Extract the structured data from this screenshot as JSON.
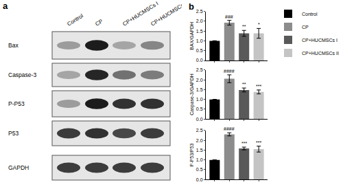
{
  "chart_data": [
    {
      "type": "bar",
      "y_label": "BAX/GAPDH",
      "categories": [
        "Control",
        "CP",
        "CP+HUCMSCs I",
        "CP+HUCMSCs II"
      ],
      "values": [
        1.0,
        1.92,
        1.38,
        1.38
      ],
      "errors": [
        0,
        0.12,
        0.15,
        0.25
      ],
      "annotations": [
        null,
        "###",
        "**",
        "*"
      ],
      "colors": [
        "#000000",
        "#8c8c8c",
        "#595959",
        "#c4c4c4"
      ],
      "ylim": [
        0,
        2.5
      ],
      "yticks": [
        {
          "value": 0,
          "label": "0.0"
        },
        {
          "value": 0.5,
          "label": "0.5"
        },
        {
          "value": 1,
          "label": "1.0"
        },
        {
          "value": 1.5,
          "label": "1.5"
        },
        {
          "value": 2,
          "label": "2.0"
        },
        {
          "value": 2.5,
          "label": "2.5"
        }
      ],
      "tick_labels": "y",
      "legend": "top right"
    },
    {
      "type": "bar",
      "y_label": "Caspase-3/GAPDH",
      "categories": [
        "Control",
        "CP",
        "CP+HUCMSCs I",
        "CP+HUCMSCs II"
      ],
      "values": [
        1.0,
        2.05,
        1.48,
        1.38
      ],
      "errors": [
        0,
        0.2,
        0.1,
        0.1
      ],
      "annotations": [
        null,
        "####",
        "**",
        "***"
      ],
      "colors": [
        "#000000",
        "#8c8c8c",
        "#595959",
        "#c4c4c4"
      ],
      "ylim": [
        0,
        2.5
      ],
      "yticks": [
        {
          "value": 0,
          "label": "0.0"
        },
        {
          "value": 0.5,
          "label": "0.5"
        },
        {
          "value": 1,
          "label": "1.0"
        },
        {
          "value": 1.5,
          "label": "1.5"
        },
        {
          "value": 2,
          "label": "2.0"
        },
        {
          "value": 2.5,
          "label": "2.5"
        }
      ],
      "tick_labels": "y"
    },
    {
      "type": "bar",
      "y_label": "P-P53/P53",
      "categories": [
        "Control",
        "CP",
        "CP+HUCMSCs I",
        "CP+HUCMSCs II"
      ],
      "values": [
        1.0,
        2.3,
        1.58,
        1.55
      ],
      "errors": [
        0,
        0.08,
        0.07,
        0.15
      ],
      "annotations": [
        null,
        "####",
        "***",
        "***"
      ],
      "colors": [
        "#000000",
        "#8c8c8c",
        "#595959",
        "#c4c4c4"
      ],
      "ylim": [
        0,
        2.5
      ],
      "yticks": [
        {
          "value": 0,
          "label": "0.0"
        },
        {
          "value": 0.5,
          "label": "0.5"
        },
        {
          "value": 1,
          "label": "1.0"
        },
        {
          "value": 1.5,
          "label": "1.5"
        },
        {
          "value": 2,
          "label": "2.0"
        },
        {
          "value": 2.5,
          "label": "2.5"
        }
      ],
      "tick_labels": "y"
    }
  ],
  "panel_labels": [
    "a",
    "b"
  ],
  "blot": {
    "lanes": [
      "Control",
      "CP",
      "CP+HUCMSCs I",
      "CP+HUCMSCs II"
    ],
    "rows": [
      {
        "label": "Bax",
        "intensity": [
          0.35,
          0.95,
          0.3,
          0.45
        ]
      },
      {
        "label": "Caspase-3",
        "intensity": [
          0.3,
          0.9,
          0.55,
          0.5
        ]
      },
      {
        "label": "P-P53",
        "intensity": [
          0.35,
          0.95,
          0.85,
          0.85
        ]
      },
      {
        "label": "P53",
        "intensity": [
          0.8,
          0.85,
          0.75,
          0.8
        ]
      },
      {
        "label": "GAPDH",
        "intensity": [
          0.8,
          0.8,
          0.8,
          0.8
        ]
      }
    ]
  }
}
